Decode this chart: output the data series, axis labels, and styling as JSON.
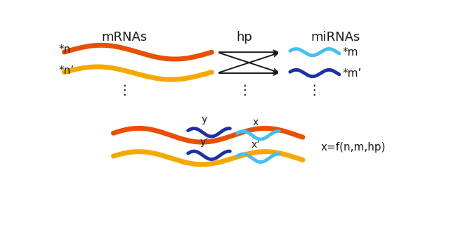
{
  "bg_color": "#ffffff",
  "mrna_color1": "#e85000",
  "mrna_color2": "#f5a800",
  "mirna_color1": "#45bfee",
  "mirna_color2": "#2030a0",
  "arrow_color": "#1a1a1a",
  "text_color": "#1a1a1a",
  "label_mrnas": "mRNAs",
  "label_hp": "hp",
  "label_mirnas": "miRNAs",
  "label_n": "*n",
  "label_np": "*n’",
  "label_m": "*m",
  "label_mp": "*m’",
  "label_y": "y",
  "label_yp": "y’",
  "label_x": "x",
  "label_xp": "x’",
  "label_formula": "x=f(n,m,hp)",
  "linewidth_mrna": 5,
  "linewidth_mirna": 3.5
}
